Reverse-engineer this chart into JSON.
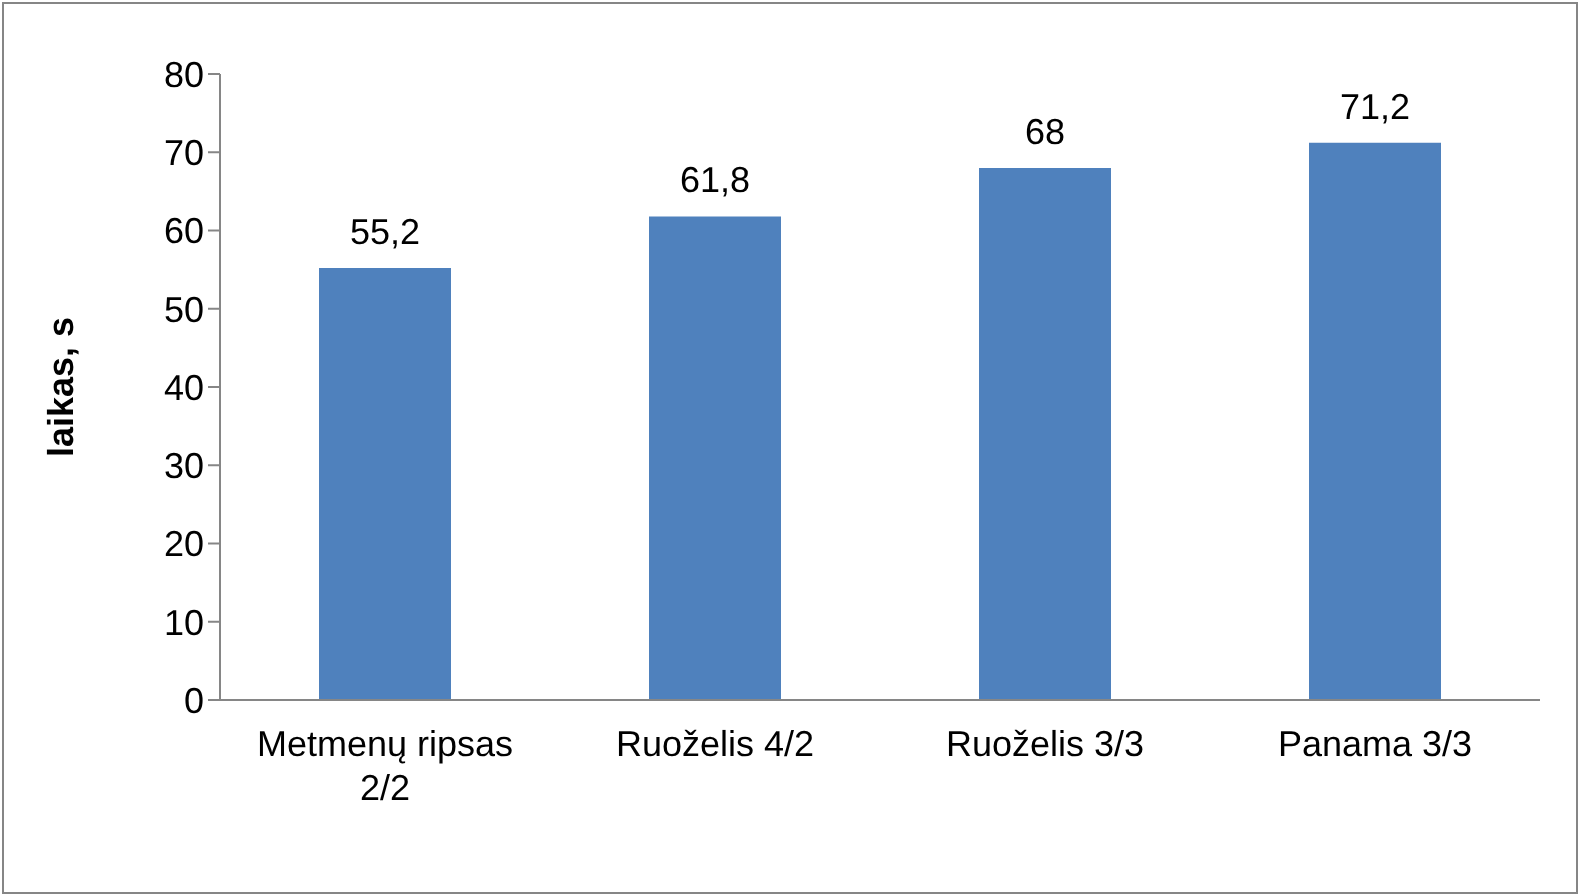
{
  "chart_data": {
    "type": "bar",
    "ylabel": "laikas, s",
    "categories": [
      "Metmenų ripsas 2/2",
      "Ruoželis 4/2",
      "Ruoželis 3/3",
      "Panama 3/3"
    ],
    "values": [
      55.2,
      61.8,
      68,
      71.2
    ],
    "value_labels": [
      "55,2",
      "61,8",
      "68",
      "71,2"
    ],
    "color": "#4f81bd",
    "ylim": [
      0,
      80
    ],
    "yticks": [
      0,
      10,
      20,
      30,
      40,
      50,
      60,
      70,
      80
    ],
    "grid": false,
    "legend": false
  }
}
